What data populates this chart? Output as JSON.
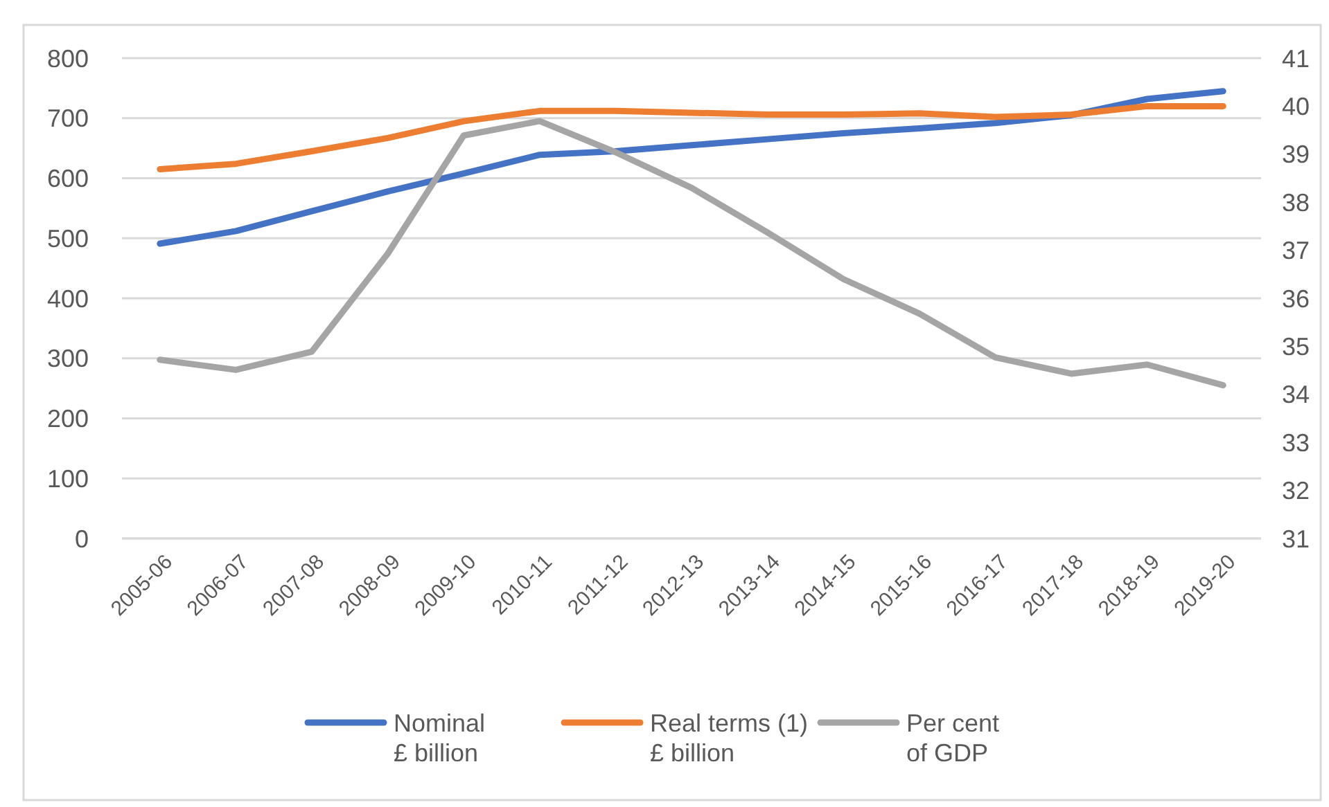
{
  "chart_data": {
    "type": "line",
    "categories": [
      "2005-06",
      "2006-07",
      "2007-08",
      "2008-09",
      "2009-10",
      "2010-11",
      "2011-12",
      "2012-13",
      "2013-14",
      "2014-15",
      "2015-16",
      "2016-17",
      "2017-18",
      "2018-19",
      "2019-20"
    ],
    "series": [
      {
        "name": "Nominal £ billion",
        "color": "#4472c4",
        "values": [
          491,
          512,
          545,
          578,
          608,
          639,
          645,
          655,
          665,
          675,
          683,
          692,
          705,
          732,
          745
        ]
      },
      {
        "name": "Real terms (1) £ billion",
        "color": "#ed7d31",
        "values": [
          615,
          624,
          645,
          667,
          695,
          712,
          712,
          709,
          706,
          706,
          708,
          702,
          706,
          720,
          720
        ]
      },
      {
        "name": "Per cent of GDP",
        "color": "#a5a5a5",
        "axis": "y2",
        "values": [
          34.72,
          34.51,
          34.89,
          36.93,
          39.39,
          39.69,
          39.04,
          38.3,
          37.37,
          36.4,
          35.68,
          34.77,
          34.43,
          34.62,
          34.19
        ]
      }
    ],
    "ylim": [
      0,
      800
    ],
    "yticks": [
      0,
      100,
      200,
      300,
      400,
      500,
      600,
      700,
      800
    ],
    "y2lim": [
      31,
      41
    ],
    "y2ticks": [
      31,
      32,
      33,
      34,
      35,
      36,
      37,
      38,
      39,
      40,
      41
    ],
    "grid": "y",
    "legend": "bottom",
    "marker": "none",
    "line_style": "solid"
  }
}
